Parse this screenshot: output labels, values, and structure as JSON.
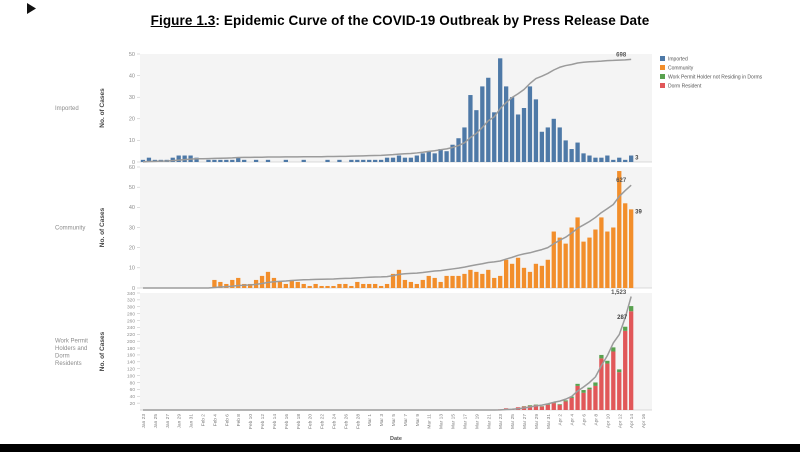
{
  "title": {
    "prefix": "Figure 1.3",
    "rest": ": Epidemic Curve of the COVID-19 Outbreak by Press Release Date"
  },
  "x_axis_label": "Date",
  "legend": [
    {
      "label": "Imported",
      "color": "#4e79a7"
    },
    {
      "label": "Community",
      "color": "#f28e2b"
    },
    {
      "label": "Work Permit Holder not Residing in Dorms",
      "color": "#59a14f"
    },
    {
      "label": "Dorm Resident",
      "color": "#e15759"
    }
  ],
  "chart_data": {
    "type": "bar",
    "line_color": "#9b9b9b",
    "x_tick_step": 2,
    "x": [
      "Jan 23",
      "Jan 24",
      "Jan 25",
      "Jan 26",
      "Jan 27",
      "Jan 28",
      "Jan 29",
      "Jan 30",
      "Jan 31",
      "Feb 1",
      "Feb 2",
      "Feb 3",
      "Feb 4",
      "Feb 5",
      "Feb 6",
      "Feb 7",
      "Feb 8",
      "Feb 9",
      "Feb 10",
      "Feb 11",
      "Feb 12",
      "Feb 13",
      "Feb 14",
      "Feb 15",
      "Feb 16",
      "Feb 17",
      "Feb 18",
      "Feb 19",
      "Feb 20",
      "Feb 21",
      "Feb 22",
      "Feb 23",
      "Feb 24",
      "Feb 25",
      "Feb 26",
      "Feb 27",
      "Feb 28",
      "Feb 29",
      "Mar 1",
      "Mar 2",
      "Mar 3",
      "Mar 4",
      "Mar 5",
      "Mar 6",
      "Mar 7",
      "Mar 8",
      "Mar 9",
      "Mar 10",
      "Mar 11",
      "Mar 12",
      "Mar 13",
      "Mar 14",
      "Mar 15",
      "Mar 16",
      "Mar 17",
      "Mar 18",
      "Mar 19",
      "Mar 20",
      "Mar 21",
      "Mar 22",
      "Mar 23",
      "Mar 24",
      "Mar 25",
      "Mar 26",
      "Mar 27",
      "Mar 28",
      "Mar 29",
      "Mar 30",
      "Mar 31",
      "Apr 1",
      "Apr 2",
      "Apr 3",
      "Apr 4",
      "Apr 5",
      "Apr 6",
      "Apr 7",
      "Apr 8",
      "Apr 9",
      "Apr 10",
      "Apr 11",
      "Apr 12",
      "Apr 13",
      "Apr 14",
      "Apr 15",
      "Apr 16",
      "Apr 17"
    ],
    "panels": [
      {
        "name": "Imported",
        "row_label_lines": [
          "Imported"
        ],
        "ylabel": "No. of Cases",
        "ylim": [
          0,
          50
        ],
        "yticks": [
          0,
          10,
          20,
          30,
          40,
          50
        ],
        "cumulative_label": "698",
        "last_bar_label": "3",
        "series": [
          {
            "name": "Imported",
            "color": "#4e79a7",
            "values": [
              1,
              2,
              1,
              1,
              1,
              2,
              3,
              3,
              3,
              2,
              0,
              1,
              1,
              1,
              1,
              1,
              2,
              1,
              0,
              1,
              0,
              1,
              0,
              0,
              1,
              0,
              0,
              1,
              0,
              0,
              0,
              1,
              0,
              1,
              0,
              1,
              1,
              1,
              1,
              1,
              1,
              2,
              2,
              3,
              2,
              2,
              3,
              4,
              5,
              4,
              6,
              5,
              8,
              11,
              16,
              31,
              24,
              35,
              39,
              23,
              48,
              35,
              30,
              22,
              25,
              35,
              29,
              14,
              16,
              20,
              16,
              10,
              6,
              9,
              4,
              3,
              2,
              2,
              3,
              1,
              2,
              1,
              3,
              0,
              0,
              0
            ]
          }
        ]
      },
      {
        "name": "Community",
        "row_label_lines": [
          "Community"
        ],
        "ylabel": "No. of Cases",
        "ylim": [
          0,
          60
        ],
        "yticks": [
          0,
          10,
          20,
          30,
          40,
          50,
          60
        ],
        "cumulative_label": "627",
        "last_bar_label": "39",
        "series": [
          {
            "name": "Community",
            "color": "#f28e2b",
            "values": [
              0,
              0,
              0,
              0,
              0,
              0,
              0,
              0,
              0,
              0,
              0,
              0,
              4,
              3,
              2,
              4,
              5,
              2,
              2,
              4,
              6,
              8,
              5,
              3,
              2,
              4,
              3,
              2,
              1,
              2,
              1,
              1,
              1,
              2,
              2,
              1,
              3,
              2,
              2,
              2,
              1,
              2,
              7,
              9,
              4,
              3,
              2,
              4,
              6,
              5,
              3,
              6,
              6,
              6,
              7,
              9,
              8,
              7,
              9,
              5,
              6,
              14,
              12,
              15,
              10,
              8,
              12,
              11,
              14,
              28,
              25,
              22,
              30,
              35,
              23,
              25,
              29,
              35,
              28,
              30,
              58,
              42,
              39,
              0,
              0,
              0
            ]
          }
        ]
      },
      {
        "name": "Work Permit Holders and Dorm Residents",
        "row_label_lines": [
          "Work Permit",
          "Holders and",
          "Dorm",
          "Residents"
        ],
        "ylabel": "No. of Cases",
        "ylim": [
          0,
          340
        ],
        "yticks": [
          20,
          40,
          60,
          80,
          100,
          120,
          140,
          160,
          180,
          200,
          220,
          240,
          260,
          280,
          300,
          320,
          340
        ],
        "cumulative_label": "1,523",
        "last_bar_label": "287",
        "series": [
          {
            "name": "Dorm Resident",
            "color": "#e15759",
            "values": [
              0,
              0,
              0,
              0,
              0,
              0,
              0,
              0,
              0,
              0,
              0,
              0,
              0,
              0,
              0,
              0,
              0,
              0,
              0,
              0,
              0,
              0,
              0,
              0,
              0,
              0,
              0,
              0,
              0,
              0,
              0,
              0,
              0,
              0,
              0,
              0,
              0,
              0,
              0,
              0,
              0,
              0,
              0,
              0,
              0,
              0,
              0,
              0,
              0,
              0,
              0,
              0,
              0,
              0,
              0,
              0,
              0,
              0,
              0,
              0,
              2,
              5,
              3,
              8,
              10,
              12,
              15,
              10,
              15,
              20,
              15,
              25,
              35,
              70,
              50,
              60,
              70,
              150,
              135,
              170,
              110,
              230,
              287,
              0,
              0,
              0
            ]
          },
          {
            "name": "Work Permit Holder not Residing in Dorms",
            "color": "#59a14f",
            "values": [
              0,
              0,
              0,
              0,
              0,
              0,
              0,
              0,
              0,
              0,
              0,
              0,
              0,
              0,
              0,
              0,
              0,
              0,
              0,
              0,
              0,
              0,
              0,
              0,
              0,
              0,
              0,
              0,
              0,
              0,
              0,
              0,
              0,
              0,
              0,
              0,
              0,
              0,
              0,
              0,
              0,
              0,
              0,
              0,
              0,
              0,
              0,
              0,
              0,
              0,
              0,
              0,
              0,
              0,
              0,
              0,
              0,
              0,
              0,
              0,
              0,
              0,
              0,
              0,
              1,
              2,
              1,
              1,
              2,
              3,
              2,
              3,
              4,
              6,
              8,
              5,
              10,
              10,
              8,
              12,
              8,
              12,
              15,
              0,
              0,
              0
            ]
          }
        ]
      }
    ]
  }
}
